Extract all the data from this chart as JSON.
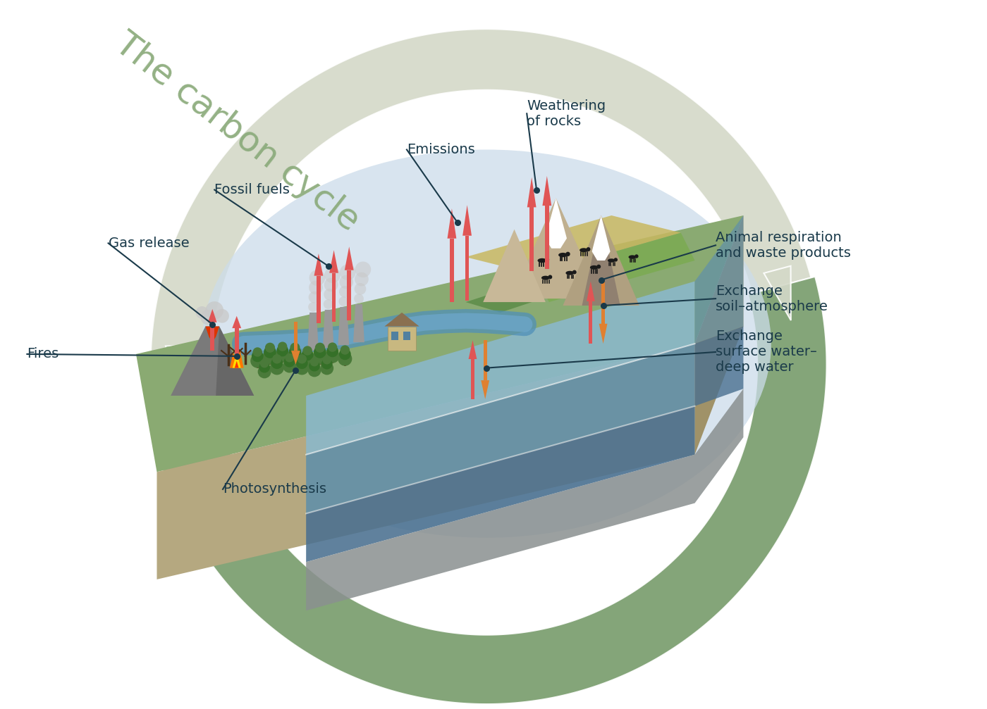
{
  "title": "The carbon cycle",
  "title_color": "#8aaa7a",
  "title_fontsize": 36,
  "bg_color": "#ffffff",
  "labels": {
    "gas_release": "Gas release",
    "fossil_fuels": "Fossil fuels",
    "emissions": "Emissions",
    "weathering": "Weathering\nof rocks",
    "animal_respiration": "Animal respiration\nand waste products",
    "exchange_soil": "Exchange\nsoil–atmosphere",
    "exchange_surface": "Exchange\nsurface water–\ndeep water",
    "fires": "Fires",
    "photosynthesis": "Photosynthesis"
  },
  "label_color": "#1a3a4a",
  "label_fontsize": 14,
  "outer_arrow_color": "#d4d9c8",
  "inner_arrow_color": "#7a9e6e",
  "sky_color": "#ccdcea",
  "land_green": "#8aaa72",
  "land_front": "#b5a880",
  "land_right": "#a09268",
  "water_top": "#8ab8cc",
  "water_mid": "#6090aa",
  "water_deep": "#4a7090",
  "water_ground": "#8a9090",
  "vol_gray": "#7a7a7a",
  "vol_dark": "#555555",
  "lava_orange": "#cc4400",
  "smoke_gray": "#c8c8c8",
  "factory_gray": "#999999",
  "factory_dark": "#777777",
  "building_tan": "#c8b880",
  "tree_green": "#4a7a3a",
  "tree_dark": "#357028",
  "trunk_brown": "#6b4226",
  "farm_yellow": "#c8b860",
  "farm_green": "#7aaa50",
  "cow_dark": "#1a1a1a",
  "arrow_red": "#e05555",
  "arrow_orange": "#e08030",
  "line_dot_color": "#1a3a4a"
}
